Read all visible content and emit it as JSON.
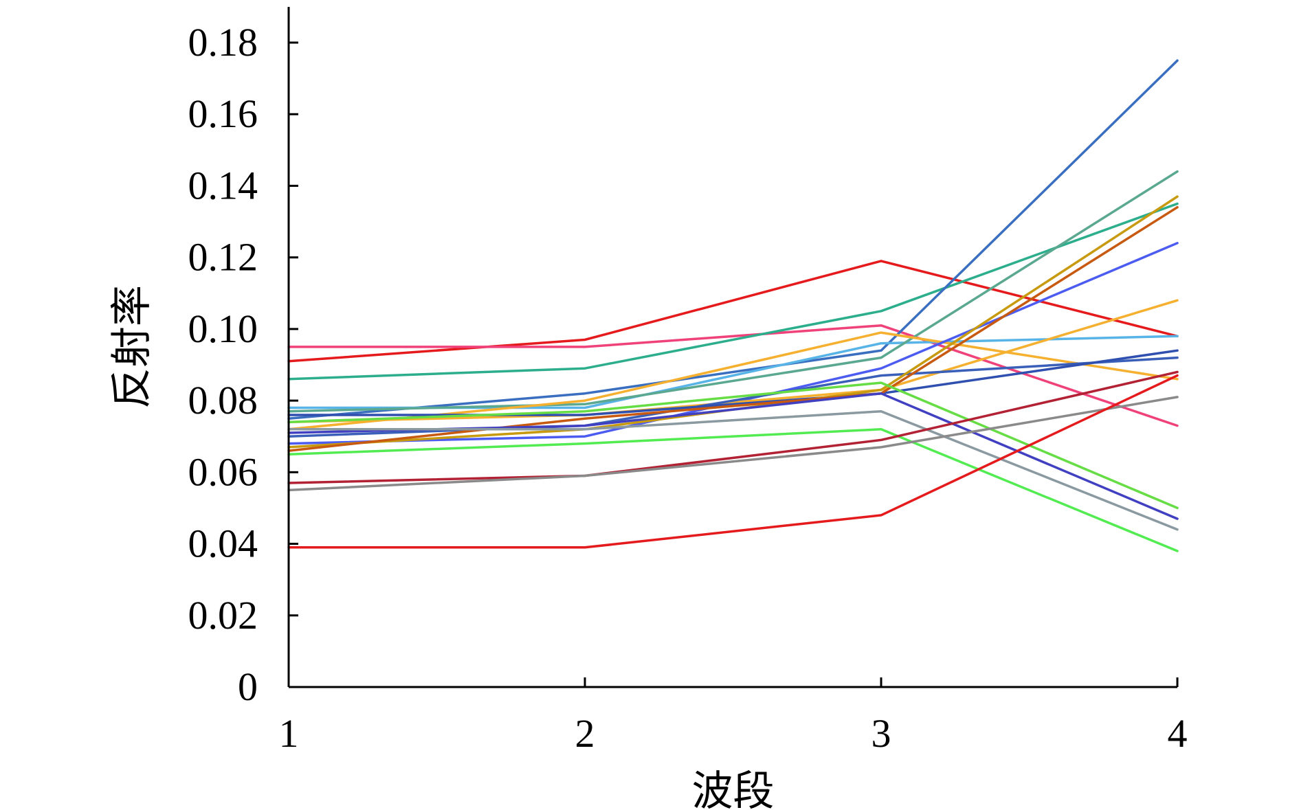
{
  "chart_data": {
    "type": "line",
    "title": "",
    "xlabel": "波段",
    "ylabel": "反射率",
    "x": [
      1,
      2,
      3,
      4
    ],
    "xticks": [
      "1",
      "2",
      "3",
      "4"
    ],
    "ylim": [
      0,
      0.19
    ],
    "yticks": [
      "0",
      "0.02",
      "0.04",
      "0.06",
      "0.08",
      "0.10",
      "0.12",
      "0.14",
      "0.16",
      "0.18"
    ],
    "ytick_values": [
      0,
      0.02,
      0.04,
      0.06,
      0.08,
      0.1,
      0.12,
      0.14,
      0.16,
      0.18
    ],
    "grid": false,
    "legend": "none",
    "series": [
      {
        "color": "#e41a1c",
        "values": [
          0.091,
          0.097,
          0.119,
          0.098
        ]
      },
      {
        "color": "#f0427a",
        "values": [
          0.095,
          0.095,
          0.101,
          0.073
        ]
      },
      {
        "color": "#2cae8c",
        "values": [
          0.086,
          0.089,
          0.105,
          0.135
        ]
      },
      {
        "color": "#3a6fc0",
        "values": [
          0.075,
          0.082,
          0.094,
          0.175
        ]
      },
      {
        "color": "#58b3e6",
        "values": [
          0.078,
          0.078,
          0.096,
          0.098
        ]
      },
      {
        "color": "#5aa890",
        "values": [
          0.077,
          0.079,
          0.092,
          0.144
        ]
      },
      {
        "color": "#f5b030",
        "values": [
          0.072,
          0.08,
          0.099,
          0.086
        ]
      },
      {
        "color": "#4c5cf0",
        "values": [
          0.068,
          0.07,
          0.089,
          0.124
        ]
      },
      {
        "color": "#f5b030",
        "values": [
          0.074,
          0.076,
          0.083,
          0.108
        ]
      },
      {
        "color": "#3a5fb8",
        "values": [
          0.07,
          0.073,
          0.087,
          0.092
        ]
      },
      {
        "color": "#3050b0",
        "values": [
          0.076,
          0.076,
          0.082,
          0.094
        ]
      },
      {
        "color": "#c79a10",
        "values": [
          0.067,
          0.072,
          0.083,
          0.137
        ]
      },
      {
        "color": "#c75a10",
        "values": [
          0.066,
          0.075,
          0.082,
          0.134
        ]
      },
      {
        "color": "#4040c0",
        "values": [
          0.071,
          0.073,
          0.082,
          0.047
        ]
      },
      {
        "color": "#66dd44",
        "values": [
          0.074,
          0.077,
          0.085,
          0.05
        ]
      },
      {
        "color": "#52ec52",
        "values": [
          0.065,
          0.068,
          0.072,
          0.038
        ]
      },
      {
        "color": "#8a9aa0",
        "values": [
          0.072,
          0.072,
          0.077,
          0.044
        ]
      },
      {
        "color": "#b22234",
        "values": [
          0.057,
          0.059,
          0.069,
          0.088
        ]
      },
      {
        "color": "#8a8a8a",
        "values": [
          0.055,
          0.059,
          0.067,
          0.081
        ]
      },
      {
        "color": "#e41a1c",
        "values": [
          0.039,
          0.039,
          0.048,
          0.087
        ]
      }
    ]
  }
}
